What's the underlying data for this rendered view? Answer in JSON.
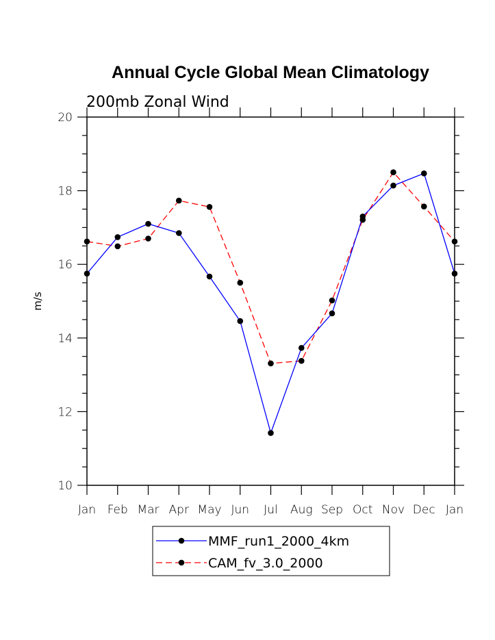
{
  "chart_data": {
    "type": "line",
    "title": "Annual Cycle Global Mean Climatology",
    "subtitle": "200mb Zonal Wind",
    "xlabel": "",
    "ylabel": "m/s",
    "ylim": [
      10,
      20
    ],
    "yticks": [
      10,
      12,
      14,
      16,
      18,
      20
    ],
    "categories": [
      "Jan",
      "Feb",
      "Mar",
      "Apr",
      "May",
      "Jun",
      "Jul",
      "Aug",
      "Sep",
      "Oct",
      "Nov",
      "Dec",
      "Jan"
    ],
    "grid": false,
    "legend_position": "bottom",
    "series": [
      {
        "name": "MMF_run1_2000_4km",
        "color": "#0000ff",
        "dash": "solid",
        "marker": "filled-circle",
        "values": [
          15.75,
          16.74,
          17.1,
          16.85,
          15.67,
          14.46,
          11.42,
          13.73,
          14.67,
          17.3,
          18.14,
          18.47,
          15.75
        ]
      },
      {
        "name": "CAM_fv_3.0_2000",
        "color": "#ff0000",
        "dash": "dashed",
        "marker": "filled-circle",
        "values": [
          16.62,
          16.49,
          16.7,
          17.73,
          17.56,
          15.5,
          13.31,
          13.38,
          15.02,
          17.21,
          18.5,
          17.57,
          16.62
        ]
      }
    ]
  }
}
